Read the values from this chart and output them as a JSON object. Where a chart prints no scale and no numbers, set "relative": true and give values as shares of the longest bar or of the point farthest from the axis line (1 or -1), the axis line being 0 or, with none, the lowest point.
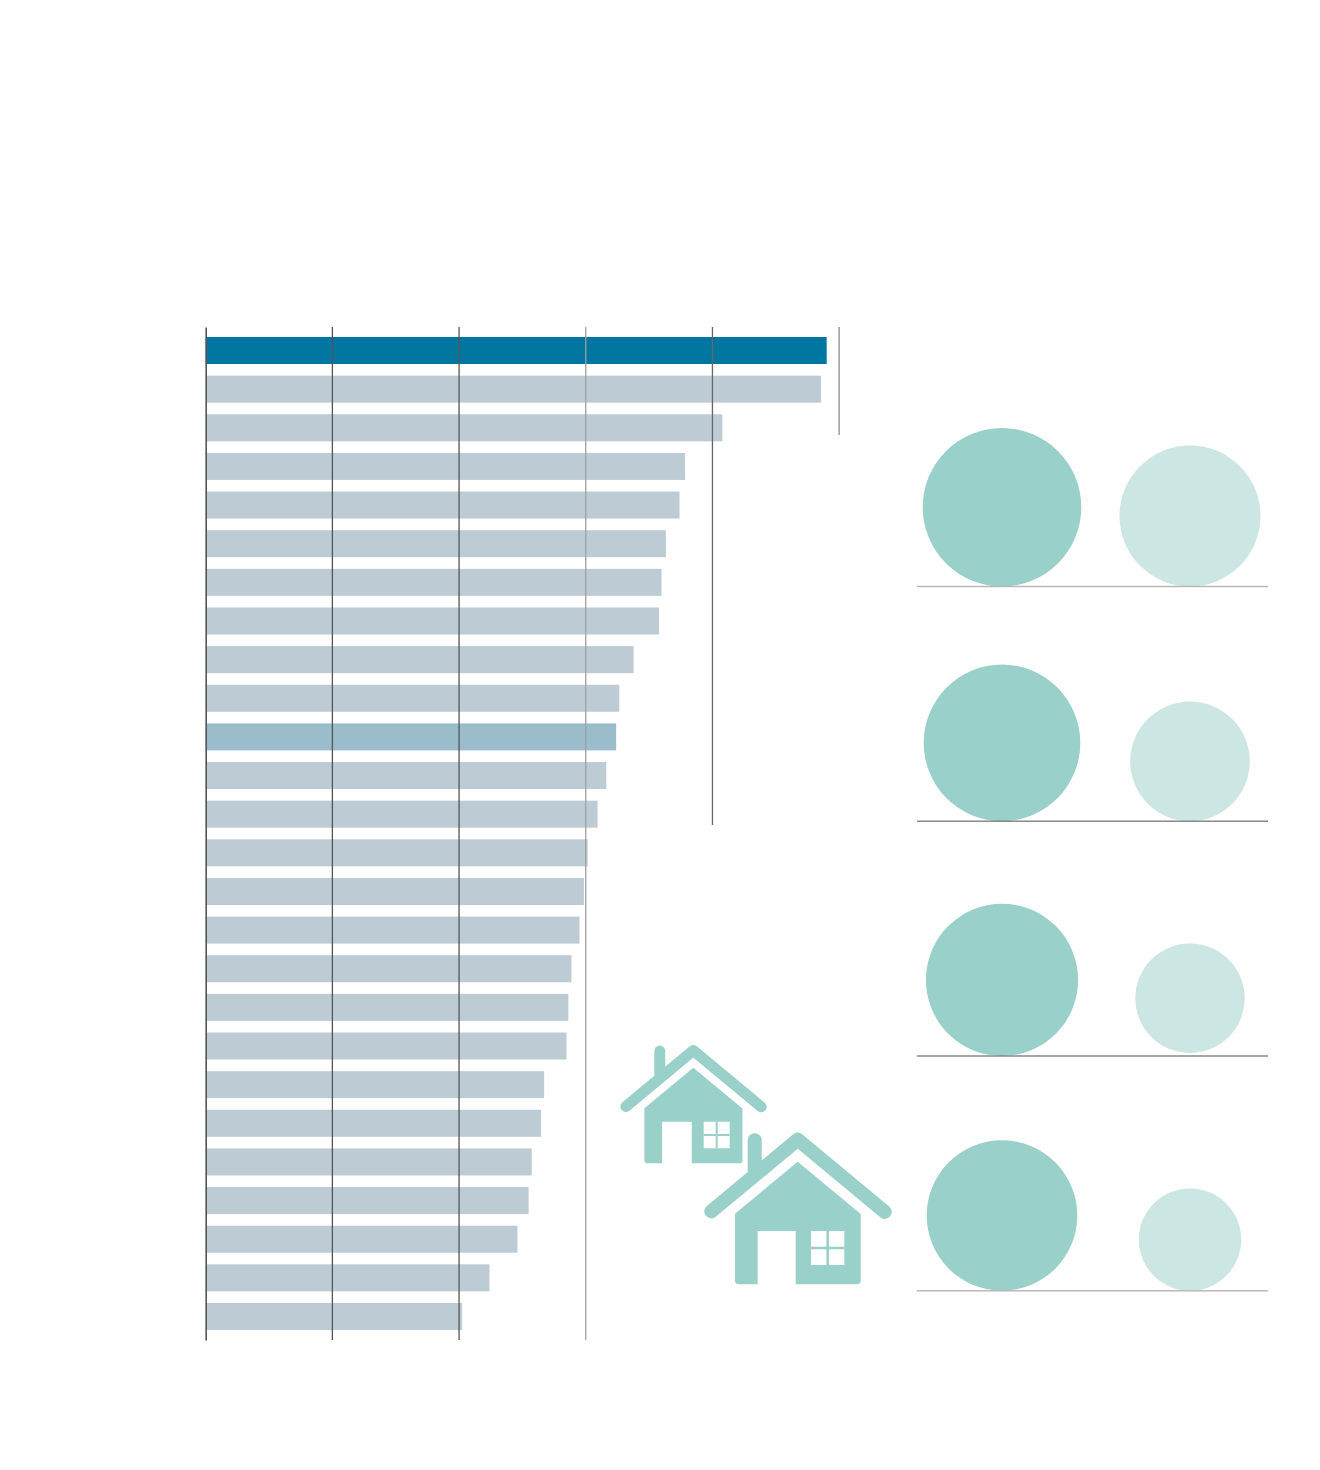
{
  "chart_data": {
    "type": "bar",
    "orientation": "horizontal",
    "relative": true,
    "categories": [
      null,
      null,
      null,
      null,
      null,
      null,
      null,
      null,
      null,
      null,
      null,
      null,
      null,
      null,
      null,
      null,
      null,
      null,
      null,
      null,
      null,
      null,
      null,
      null,
      null,
      null
    ],
    "values": [
      1,
      0.991,
      0.832,
      0.772,
      0.763,
      0.741,
      0.734,
      0.73,
      0.689,
      0.666,
      0.661,
      0.645,
      0.631,
      0.615,
      0.609,
      0.602,
      0.589,
      0.584,
      0.581,
      0.545,
      0.54,
      0.525,
      0.52,
      0.502,
      0.457,
      0.413
    ],
    "colors": [
      "#0076a0",
      "#bdcbd4",
      "#bdcbd4",
      "#bdcbd4",
      "#bdcbd4",
      "#bdcbd4",
      "#bdcbd4",
      "#bdcbd4",
      "#bdcbd4",
      "#bdcbd4",
      "#9bbccb",
      "#bdcbd4",
      "#bdcbd4",
      "#bdcbd4",
      "#bdcbd4",
      "#bdcbd4",
      "#bdcbd4",
      "#bdcbd4",
      "#bdcbd4",
      "#bdcbd4",
      "#bdcbd4",
      "#bdcbd4",
      "#bdcbd4",
      "#bdcbd4",
      "#bdcbd4",
      "#bdcbd4"
    ],
    "ref_lines": [
      {
        "axis": "x",
        "value": 0.204,
        "color": "#555555"
      },
      {
        "axis": "x",
        "value": 0.408,
        "color": "#555555"
      },
      {
        "axis": "x",
        "value": 0.612,
        "color": "#a0a0a0"
      },
      {
        "axis": "x",
        "value": 0.816,
        "color": "#666666"
      },
      {
        "axis": "x",
        "value": 1.02,
        "color": "#8c8c8c"
      }
    ]
  }
}
